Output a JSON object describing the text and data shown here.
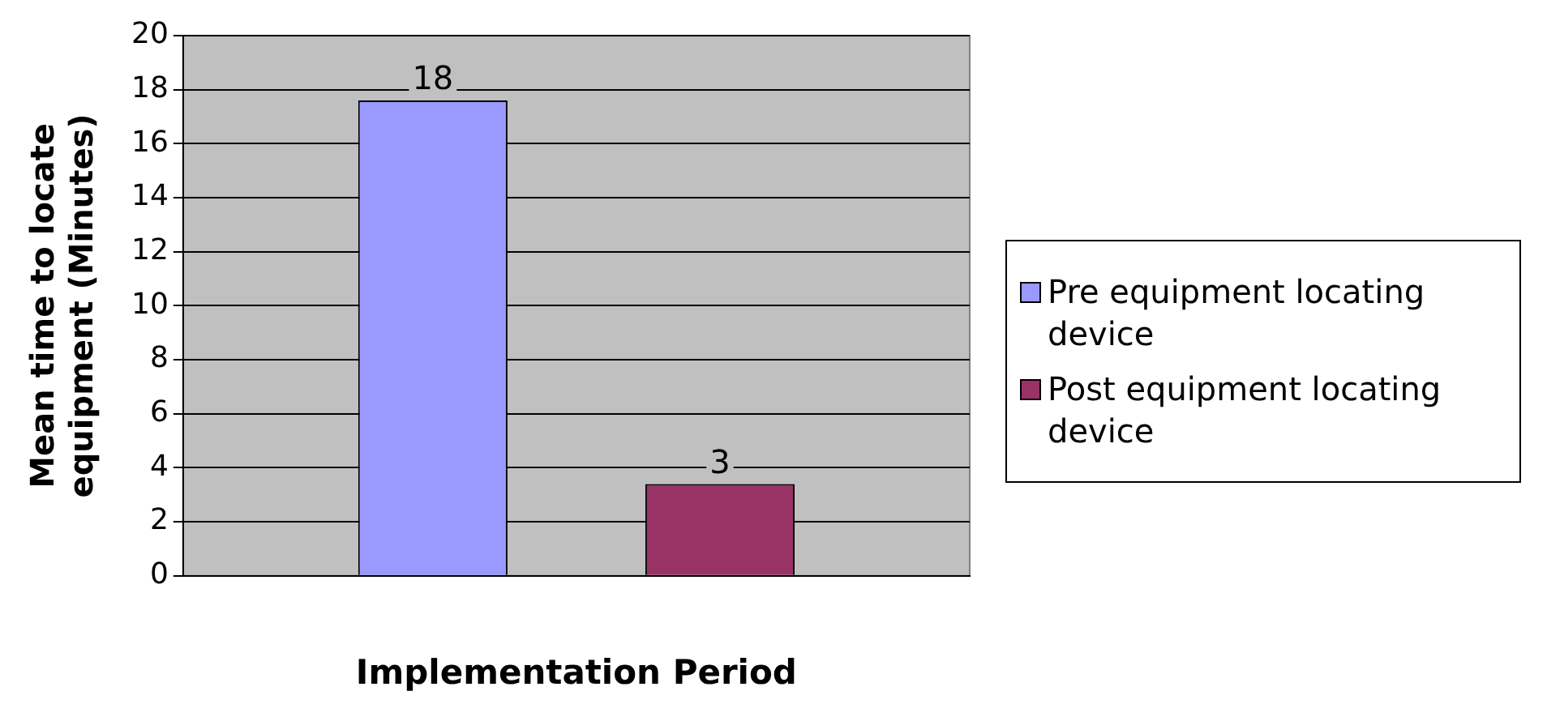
{
  "chart_data": {
    "type": "bar",
    "xlabel": "Implementation Period",
    "ylabel": "Mean time to locate equipment (Minutes)",
    "categories": [
      null
    ],
    "series": [
      {
        "name": "Pre equipment locating device",
        "color": "#9999ff",
        "values": [
          17.6
        ],
        "value_labels": [
          "18"
        ]
      },
      {
        "name": "Post equipment locating device",
        "color": "#993366",
        "values": [
          3.4
        ],
        "value_labels": [
          "3"
        ]
      }
    ],
    "ylim": [
      0,
      20
    ],
    "yticks": [
      0,
      2,
      4,
      6,
      8,
      10,
      12,
      14,
      16,
      18,
      20
    ],
    "grid": "y",
    "legend": "right"
  }
}
